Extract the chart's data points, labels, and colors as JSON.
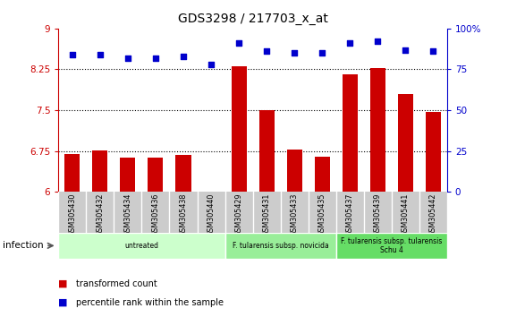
{
  "title": "GDS3298 / 217703_x_at",
  "samples": [
    "GSM305430",
    "GSM305432",
    "GSM305434",
    "GSM305436",
    "GSM305438",
    "GSM305440",
    "GSM305429",
    "GSM305431",
    "GSM305433",
    "GSM305435",
    "GSM305437",
    "GSM305439",
    "GSM305441",
    "GSM305442"
  ],
  "bar_values": [
    6.7,
    6.76,
    6.63,
    6.62,
    6.67,
    6.01,
    8.31,
    7.5,
    6.78,
    6.65,
    8.16,
    8.28,
    7.8,
    7.46
  ],
  "dot_values": [
    84,
    84,
    82,
    82,
    83,
    78,
    91,
    86,
    85,
    85,
    91,
    92,
    87,
    86
  ],
  "ylim_left": [
    6,
    9
  ],
  "ylim_right": [
    0,
    100
  ],
  "yticks_left": [
    6,
    6.75,
    7.5,
    8.25,
    9
  ],
  "yticks_right": [
    0,
    25,
    50,
    75,
    100
  ],
  "ytick_labels_left": [
    "6",
    "6.75",
    "7.5",
    "8.25",
    "9"
  ],
  "ytick_labels_right": [
    "0",
    "25",
    "50",
    "75",
    "100%"
  ],
  "bar_color": "#cc0000",
  "dot_color": "#0000cc",
  "tick_area_color": "#cccccc",
  "groups": [
    {
      "label": "untreated",
      "start": 0,
      "end": 6,
      "color": "#ccffcc"
    },
    {
      "label": "F. tularensis subsp. novicida",
      "start": 6,
      "end": 10,
      "color": "#99ee99"
    },
    {
      "label": "F. tularensis subsp. tularensis\nSchu 4",
      "start": 10,
      "end": 14,
      "color": "#66dd66"
    }
  ],
  "xlabel_infection": "infection",
  "legend_bar": "transformed count",
  "legend_dot": "percentile rank within the sample",
  "grid_values": [
    6.75,
    7.5,
    8.25
  ],
  "n_samples": 14
}
